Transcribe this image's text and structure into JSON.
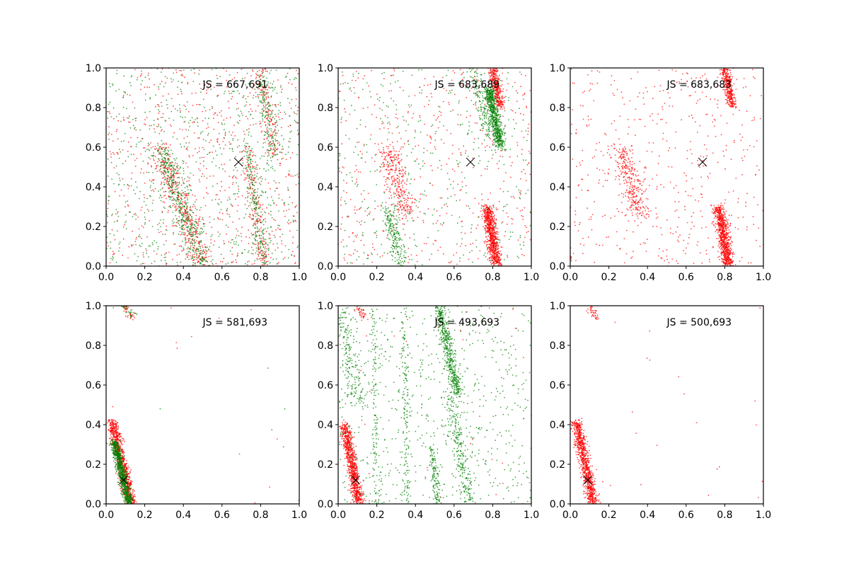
{
  "figure": {
    "background": "#ffffff"
  },
  "colors": {
    "series_red": "#ff0000",
    "series_green": "#008000",
    "marker": "#000000",
    "axes": "#000000"
  },
  "chart_data": [
    {
      "type": "scatter",
      "annotation": "JS = 667,691",
      "xlim": [
        0,
        1
      ],
      "ylim": [
        0,
        1
      ],
      "xticks": [
        "0.0",
        "0.2",
        "0.4",
        "0.6",
        "0.8",
        "1.0"
      ],
      "yticks": [
        "0.0",
        "0.2",
        "0.4",
        "0.6",
        "0.8",
        "1.0"
      ],
      "grid": false,
      "marker": {
        "x": 0.685,
        "y": 0.525,
        "symbol": "x"
      },
      "series": [
        {
          "color": "#ff0000",
          "clusters": [
            {
              "x0": 0.28,
              "y0": 0.6,
              "x1": 0.5,
              "y1": 0.0,
              "count": 420,
              "spread": 0.03
            },
            {
              "x0": 0.73,
              "y0": 0.6,
              "x1": 0.82,
              "y1": 0.0,
              "count": 200,
              "spread": 0.02
            },
            {
              "x0": 0.8,
              "y0": 1.0,
              "x1": 0.87,
              "y1": 0.55,
              "count": 150,
              "spread": 0.02
            }
          ],
          "background_count": 700
        },
        {
          "color": "#008000",
          "clusters": [
            {
              "x0": 0.28,
              "y0": 0.6,
              "x1": 0.5,
              "y1": 0.0,
              "count": 420,
              "spread": 0.03
            },
            {
              "x0": 0.73,
              "y0": 0.6,
              "x1": 0.82,
              "y1": 0.0,
              "count": 200,
              "spread": 0.02
            },
            {
              "x0": 0.8,
              "y0": 1.0,
              "x1": 0.87,
              "y1": 0.55,
              "count": 150,
              "spread": 0.02
            }
          ],
          "background_count": 700
        }
      ]
    },
    {
      "type": "scatter",
      "annotation": "JS = 683,689",
      "xlim": [
        0,
        1
      ],
      "ylim": [
        0,
        1
      ],
      "xticks": [
        "0.0",
        "0.2",
        "0.4",
        "0.6",
        "0.8",
        "1.0"
      ],
      "yticks": [
        "0.0",
        "0.2",
        "0.4",
        "0.6",
        "0.8",
        "1.0"
      ],
      "grid": false,
      "marker": {
        "x": 0.685,
        "y": 0.525,
        "symbol": "x"
      },
      "series": [
        {
          "color": "#ff0000",
          "clusters": [
            {
              "x0": 0.77,
              "y0": 0.3,
              "x1": 0.82,
              "y1": 0.0,
              "count": 800,
              "spread": 0.015
            },
            {
              "x0": 0.8,
              "y0": 1.0,
              "x1": 0.84,
              "y1": 0.8,
              "count": 350,
              "spread": 0.012
            },
            {
              "x0": 0.26,
              "y0": 0.6,
              "x1": 0.36,
              "y1": 0.25,
              "count": 300,
              "spread": 0.03
            }
          ],
          "background_count": 500
        },
        {
          "color": "#008000",
          "clusters": [
            {
              "x0": 0.78,
              "y0": 0.9,
              "x1": 0.84,
              "y1": 0.6,
              "count": 700,
              "spread": 0.015
            },
            {
              "x0": 0.26,
              "y0": 0.3,
              "x1": 0.33,
              "y1": 0.0,
              "count": 200,
              "spread": 0.02
            },
            {
              "x0": 0.7,
              "y0": 1.0,
              "x1": 0.78,
              "y1": 0.65,
              "count": 150,
              "spread": 0.02
            }
          ],
          "background_count": 400
        }
      ]
    },
    {
      "type": "scatter",
      "annotation": "JS = 683,683",
      "xlim": [
        0,
        1
      ],
      "ylim": [
        0,
        1
      ],
      "xticks": [
        "0.0",
        "0.2",
        "0.4",
        "0.6",
        "0.8",
        "1.0"
      ],
      "yticks": [
        "0.0",
        "0.2",
        "0.4",
        "0.6",
        "0.8",
        "1.0"
      ],
      "grid": false,
      "marker": {
        "x": 0.685,
        "y": 0.525,
        "symbol": "x"
      },
      "series": [
        {
          "color": "#ff0000",
          "clusters": [
            {
              "x0": 0.77,
              "y0": 0.3,
              "x1": 0.82,
              "y1": 0.0,
              "count": 800,
              "spread": 0.015
            },
            {
              "x0": 0.8,
              "y0": 1.0,
              "x1": 0.84,
              "y1": 0.8,
              "count": 350,
              "spread": 0.012
            },
            {
              "x0": 0.26,
              "y0": 0.6,
              "x1": 0.36,
              "y1": 0.25,
              "count": 300,
              "spread": 0.03
            }
          ],
          "background_count": 500
        }
      ]
    },
    {
      "type": "scatter",
      "annotation": "JS = 581,693",
      "xlim": [
        0,
        1
      ],
      "ylim": [
        0,
        1
      ],
      "xticks": [
        "0.0",
        "0.2",
        "0.4",
        "0.6",
        "0.8",
        "1.0"
      ],
      "yticks": [
        "0.0",
        "0.2",
        "0.4",
        "0.6",
        "0.8",
        "1.0"
      ],
      "grid": false,
      "marker": {
        "x": 0.09,
        "y": 0.12,
        "symbol": "x"
      },
      "series": [
        {
          "color": "#ff0000",
          "clusters": [
            {
              "x0": 0.03,
              "y0": 0.42,
              "x1": 0.13,
              "y1": 0.0,
              "count": 900,
              "spread": 0.014
            },
            {
              "x0": 0.09,
              "y0": 1.0,
              "x1": 0.14,
              "y1": 0.93,
              "count": 40,
              "spread": 0.01
            }
          ],
          "background_count": 12
        },
        {
          "color": "#008000",
          "clusters": [
            {
              "x0": 0.04,
              "y0": 0.32,
              "x1": 0.12,
              "y1": 0.0,
              "count": 800,
              "spread": 0.011
            },
            {
              "x0": 0.09,
              "y0": 1.0,
              "x1": 0.14,
              "y1": 0.95,
              "count": 25,
              "spread": 0.01
            }
          ],
          "background_count": 8
        }
      ]
    },
    {
      "type": "scatter",
      "annotation": "JS = 493,693",
      "xlim": [
        0,
        1
      ],
      "ylim": [
        0,
        1
      ],
      "xticks": [
        "0.0",
        "0.2",
        "0.4",
        "0.6",
        "0.8",
        "1.0"
      ],
      "yticks": [
        "0.0",
        "0.2",
        "0.4",
        "0.6",
        "0.8",
        "1.0"
      ],
      "grid": false,
      "marker": {
        "x": 0.09,
        "y": 0.12,
        "symbol": "x"
      },
      "series": [
        {
          "color": "#ff0000",
          "clusters": [
            {
              "x0": 0.03,
              "y0": 0.4,
              "x1": 0.11,
              "y1": 0.0,
              "count": 900,
              "spread": 0.014
            },
            {
              "x0": 0.1,
              "y0": 1.0,
              "x1": 0.14,
              "y1": 0.93,
              "count": 40,
              "spread": 0.01
            }
          ],
          "background_count": 30
        },
        {
          "color": "#008000",
          "clusters": [
            {
              "x0": 0.52,
              "y0": 1.0,
              "x1": 0.62,
              "y1": 0.55,
              "count": 500,
              "spread": 0.015
            },
            {
              "x0": 0.58,
              "y0": 0.55,
              "x1": 0.68,
              "y1": 0.0,
              "count": 250,
              "spread": 0.02
            },
            {
              "x0": 0.0,
              "y0": 1.0,
              "x1": 0.1,
              "y1": 0.5,
              "count": 200,
              "spread": 0.03
            },
            {
              "x0": 0.34,
              "y0": 1.0,
              "x1": 0.36,
              "y1": 0.0,
              "count": 150,
              "spread": 0.01
            },
            {
              "x0": 0.18,
              "y0": 1.0,
              "x1": 0.2,
              "y1": 0.0,
              "count": 120,
              "spread": 0.01
            },
            {
              "x0": 0.48,
              "y0": 0.3,
              "x1": 0.52,
              "y1": 0.0,
              "count": 120,
              "spread": 0.01
            }
          ],
          "background_count": 700
        }
      ]
    },
    {
      "type": "scatter",
      "annotation": "JS = 500,693",
      "xlim": [
        0,
        1
      ],
      "ylim": [
        0,
        1
      ],
      "xticks": [
        "0.0",
        "0.2",
        "0.4",
        "0.6",
        "0.8",
        "1.0"
      ],
      "yticks": [
        "0.0",
        "0.2",
        "0.4",
        "0.6",
        "0.8",
        "1.0"
      ],
      "grid": false,
      "marker": {
        "x": 0.09,
        "y": 0.12,
        "symbol": "x"
      },
      "series": [
        {
          "color": "#ff0000",
          "clusters": [
            {
              "x0": 0.03,
              "y0": 0.42,
              "x1": 0.12,
              "y1": 0.0,
              "count": 900,
              "spread": 0.014
            },
            {
              "x0": 0.1,
              "y0": 1.0,
              "x1": 0.14,
              "y1": 0.93,
              "count": 40,
              "spread": 0.01
            }
          ],
          "background_count": 25
        }
      ]
    }
  ]
}
